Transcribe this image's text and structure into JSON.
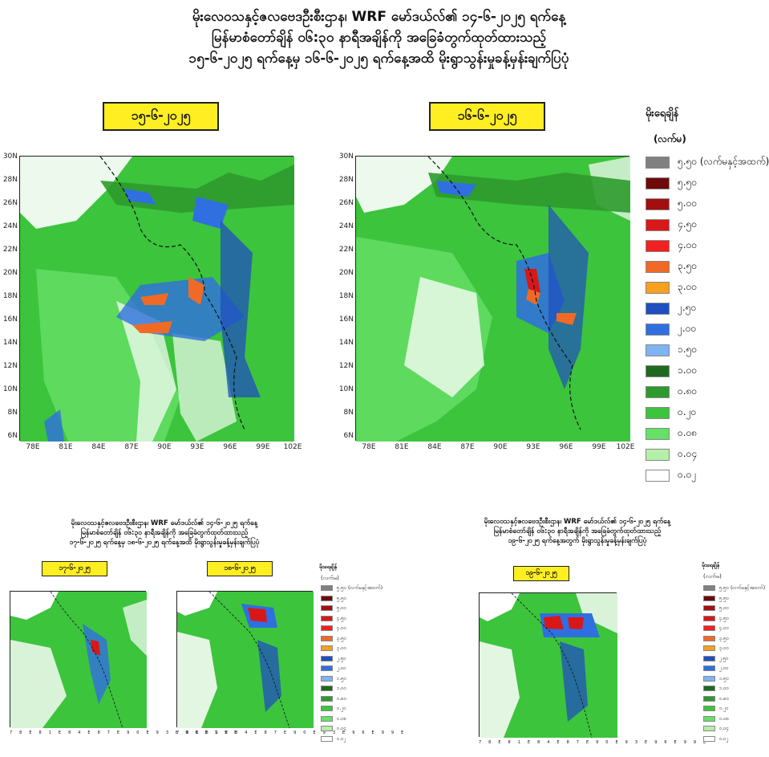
{
  "header": {
    "line1": "မိုးလေဝသနှင့်ဇလဗေဒဦးစီးဌာန၊ WRF မော်ဒယ်လ်၏ ၁၄-၆-၂၀၂၅ ရက်နေ့",
    "line2": "မြန်မာစံတော်ချိန် ၀၆:၃၀ နာရီအချိန်ကို အခြေခံတွက်ထုတ်ထားသည့်",
    "line3": "၁၅-၆-၂၀၂၅ ရက်နေ့မှ ၁၆-၆-၂၀၂၅ ရက်နေ့အထိ မိုးရွာသွန်းမှုခန့်မှန်းချက်ပြပုံ"
  },
  "maps": {
    "map1_date": "၁၅-၆-၂၀၂၅",
    "map2_date": "၁၆-၆-၂၀၂၅",
    "y_ticks": [
      "30N",
      "28N",
      "26N",
      "24N",
      "22N",
      "20N",
      "18N",
      "16N",
      "14N",
      "12N",
      "10N",
      "8N",
      "6N"
    ],
    "x_ticks": [
      "78E",
      "81E",
      "84E",
      "87E",
      "90E",
      "93E",
      "96E",
      "99E",
      "102E"
    ]
  },
  "legend": {
    "title": "မိုးရေချိန်",
    "unit": "(လက်မ)",
    "items": [
      {
        "label": "၅.၅၀ (လက်မနှင့်အထက်)",
        "color": "#808080"
      },
      {
        "label": "၅.၅၀",
        "color": "#6e0a0a"
      },
      {
        "label": "၅.၀၀",
        "color": "#a30e0e"
      },
      {
        "label": "၄.၅၀",
        "color": "#d81818"
      },
      {
        "label": "၄.၀၀",
        "color": "#f22020"
      },
      {
        "label": "၃.၅၀",
        "color": "#f06a26"
      },
      {
        "label": "၃.၀၀",
        "color": "#f7a11e"
      },
      {
        "label": "၂.၅၀",
        "color": "#1f4fbf"
      },
      {
        "label": "၂.၀၀",
        "color": "#2f6fe0"
      },
      {
        "label": "၁.၅၀",
        "color": "#7eb4f2"
      },
      {
        "label": "၁.၀၀",
        "color": "#1f6a1f"
      },
      {
        "label": "၀.၈၀",
        "color": "#2e9a2e"
      },
      {
        "label": "၀.၂၀",
        "color": "#3cc43c"
      },
      {
        "label": "၀.၀၈",
        "color": "#66e066"
      },
      {
        "label": "၀.၀၄",
        "color": "#b4f0a8"
      },
      {
        "label": "၀.၀၂",
        "color": "#ffffff"
      }
    ]
  },
  "bottom_left": {
    "line1": "မိုးလေဝသနှင့်ဇလဗေဒဦးစီးဌာန၊ WRF မော်ဒယ်လ်၏ ၁၄-၆-၂၀၂၅ ရက်နေ့",
    "line2": "မြန်မာစံတော်ချိန် ၀၆:၃၀ နာရီအချိန်ကို အခြေခံတွက်ထုတ်ထားသည့်",
    "line3": "၁၇-၆-၂၀၂၅ ရက်နေ့မှ ၁၈-၆-၂၀၂၅ ရက်နေ့အထိ မိုးရွာသွန်းမှုခန့်မှန်းချက်ပြပုံ",
    "map1_date": "၁၇-၆-၂၀၂၅",
    "map2_date": "၁၈-၆-၂၀၂၅"
  },
  "bottom_right": {
    "line1": "မိုးလေဝသနှင့်ဇလဗေဒဦးစီးဌာန၊ WRF မော်ဒယ်လ်၏ ၁၄-၆-၂၀၂၅ ရက်နေ့",
    "line2": "မြန်မာစံတော်ချိန် ၀၆:၃၀ နာရီအချိန်ကို အခြေခံတွက်ထုတ်ထားသည့်",
    "line3": "၁၉-၆-၂၀၂၅ ရက်နေ့အတွက် မိုးရွာသွန်းမှုခန့်မှန်းချက်ပြပုံ",
    "map_date": "၁၉-၆-၂၀၂၅"
  }
}
